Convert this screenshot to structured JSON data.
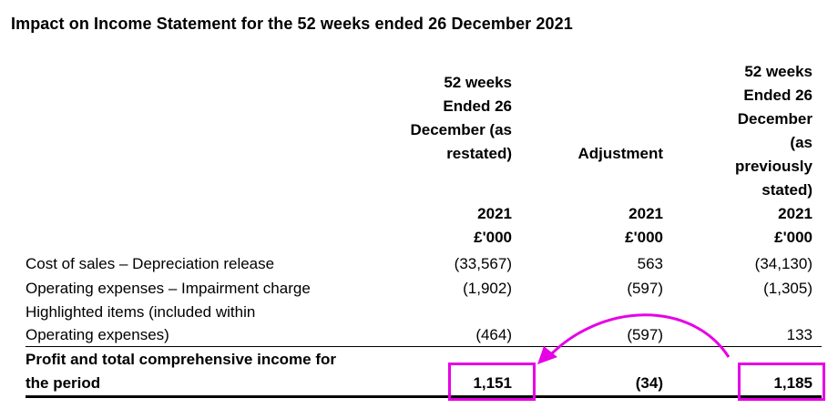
{
  "title": "Impact on Income Statement for the 52 weeks ended 26 December 2021",
  "columns": [
    {
      "header_lines": [
        "52 weeks",
        "Ended 26",
        "December (as",
        "restated)"
      ],
      "year": "2021",
      "unit": "£'000"
    },
    {
      "header_lines": [
        "Adjustment"
      ],
      "year": "2021",
      "unit": "£'000"
    },
    {
      "header_lines": [
        "52 weeks",
        "Ended 26",
        "December",
        "(as",
        "previously",
        "stated)"
      ],
      "year": "2021",
      "unit": "£'000"
    }
  ],
  "rows": [
    {
      "label_lines": [
        "Cost of sales – Depreciation release"
      ],
      "values": [
        "(33,567)",
        "563",
        "(34,130)"
      ],
      "bold": false
    },
    {
      "label_lines": [
        "Operating expenses – Impairment charge"
      ],
      "values": [
        "(1,902)",
        "(597)",
        "(1,305)"
      ],
      "bold": false
    },
    {
      "label_lines": [
        "Highlighted items (included within",
        "Operating expenses)"
      ],
      "values": [
        "(464)",
        "(597)",
        "133"
      ],
      "bold": false
    },
    {
      "label_lines": [
        "Profit and total comprehensive income for",
        "the period"
      ],
      "values": [
        "1,151",
        "(34)",
        "1,185"
      ],
      "bold": true
    }
  ],
  "annotation": {
    "color": "#e600e6",
    "highlighted_values": [
      "1,151",
      "1,185"
    ],
    "arrow_direction": "from previously stated to restated"
  }
}
